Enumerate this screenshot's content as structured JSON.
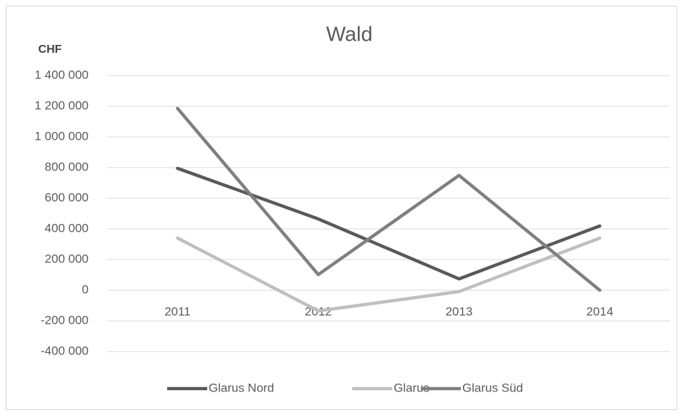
{
  "chart_data": {
    "type": "line",
    "title": "Wald",
    "y_label": "CHF",
    "categories": [
      "2011",
      "2012",
      "2013",
      "2014"
    ],
    "series": [
      {
        "name": "Glarus Nord",
        "color": "#595959",
        "values": [
          795000,
          465000,
          74000,
          419000
        ]
      },
      {
        "name": "Glarus",
        "color": "#bfbfbf",
        "values": [
          340000,
          -135000,
          -9000,
          340000
        ]
      },
      {
        "name": "Glarus Süd",
        "color": "#7f7f7f",
        "values": [
          1186000,
          102000,
          749000,
          0
        ]
      }
    ],
    "ylim": [
      -400000,
      1400000
    ],
    "yticks": [
      {
        "value": -400000,
        "label": "-400 000"
      },
      {
        "value": -200000,
        "label": "-200 000"
      },
      0,
      {
        "value": 200000,
        "label": "200 000"
      },
      {
        "value": 400000,
        "label": "400 000"
      },
      {
        "value": 600000,
        "label": "600 000"
      },
      {
        "value": 800000,
        "label": "800 000"
      },
      {
        "value": 1000000,
        "label": "1 000 000"
      },
      {
        "value": 1200000,
        "label": "1 200 000"
      },
      {
        "value": 1400000,
        "label": "1 400 000"
      }
    ],
    "grid": true,
    "legend": "bottom"
  }
}
